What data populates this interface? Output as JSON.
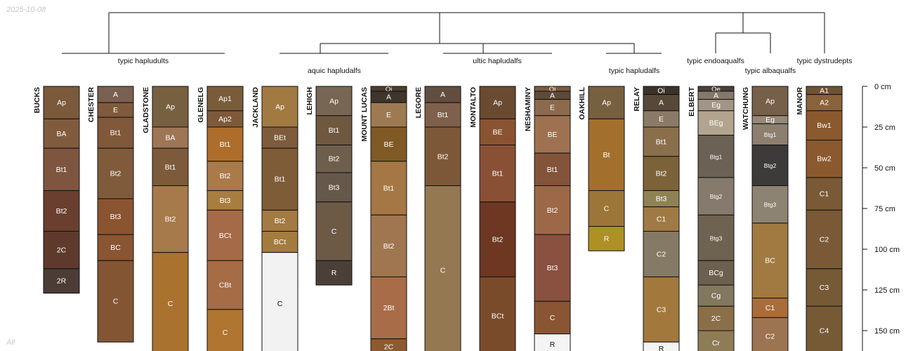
{
  "date_stamp": "2025-10-08",
  "footer_label": "All",
  "depth_axis": {
    "unit": "cm",
    "ticks": [
      {
        "value": 0,
        "label": "0 cm"
      },
      {
        "value": 25,
        "label": "25 cm"
      },
      {
        "value": 50,
        "label": "50 cm"
      },
      {
        "value": 75,
        "label": "75 cm"
      },
      {
        "value": 100,
        "label": "100 cm"
      },
      {
        "value": 125,
        "label": "125 cm"
      },
      {
        "value": 150,
        "label": "150 cm"
      }
    ]
  },
  "groups": [
    {
      "label": "typic hapludults",
      "profiles": [
        0,
        1,
        2,
        3
      ]
    },
    {
      "label": "aquic hapludalfs",
      "profiles": [
        4,
        5,
        6
      ]
    },
    {
      "label": "ultic hapludalfs",
      "profiles": [
        7,
        8,
        9
      ]
    },
    {
      "label": "typic hapludalfs",
      "profiles": [
        10,
        11
      ]
    },
    {
      "label": "typic endoaqualfs",
      "profiles": [
        12
      ]
    },
    {
      "label": "typic albaqualfs",
      "profiles": [
        13
      ]
    },
    {
      "label": "typic dystrudepts",
      "profiles": [
        14
      ]
    }
  ],
  "profiles": [
    {
      "name": "BUCKS",
      "horizons": [
        {
          "name": "Ap",
          "top": 0,
          "bottom": 20,
          "color": "#7a5a3a"
        },
        {
          "name": "BA",
          "top": 20,
          "bottom": 38,
          "color": "#815b3d"
        },
        {
          "name": "Bt1",
          "top": 38,
          "bottom": 64,
          "color": "#7e5640"
        },
        {
          "name": "Bt2",
          "top": 64,
          "bottom": 89,
          "color": "#6a3f2f"
        },
        {
          "name": "2C",
          "top": 89,
          "bottom": 112,
          "color": "#5e3a2d"
        },
        {
          "name": "2R",
          "top": 112,
          "bottom": 127,
          "color": "#4b3c36"
        }
      ]
    },
    {
      "name": "CHESTER",
      "horizons": [
        {
          "name": "A",
          "top": 0,
          "bottom": 10,
          "color": "#796050"
        },
        {
          "name": "E",
          "top": 10,
          "bottom": 19,
          "color": "#7f5a3c"
        },
        {
          "name": "Bt1",
          "top": 19,
          "bottom": 38,
          "color": "#80583a"
        },
        {
          "name": "Bt2",
          "top": 38,
          "bottom": 69,
          "color": "#7f5b3c"
        },
        {
          "name": "Bt3",
          "top": 69,
          "bottom": 91,
          "color": "#8a5430"
        },
        {
          "name": "BC",
          "top": 91,
          "bottom": 107,
          "color": "#8a5532"
        },
        {
          "name": "C",
          "top": 107,
          "bottom": 157,
          "color": "#845533"
        }
      ]
    },
    {
      "name": "GLADSTONE",
      "horizons": [
        {
          "name": "Ap",
          "top": 0,
          "bottom": 25,
          "color": "#76603f"
        },
        {
          "name": "BA",
          "top": 25,
          "bottom": 38,
          "color": "#9e7656"
        },
        {
          "name": "Bt1",
          "top": 38,
          "bottom": 61,
          "color": "#7d5a3a"
        },
        {
          "name": "Bt2",
          "top": 61,
          "bottom": 102,
          "color": "#a67a4b"
        },
        {
          "name": "C",
          "top": 102,
          "bottom": 165,
          "color": "#a9722e"
        }
      ]
    },
    {
      "name": "GLENELG",
      "horizons": [
        {
          "name": "Ap1",
          "top": 0,
          "bottom": 15,
          "color": "#7a5c3b"
        },
        {
          "name": "Ap2",
          "top": 15,
          "bottom": 25,
          "color": "#7f5a3a"
        },
        {
          "name": "Bt1",
          "top": 25,
          "bottom": 46,
          "color": "#ad6e2b"
        },
        {
          "name": "Bt2",
          "top": 46,
          "bottom": 64,
          "color": "#aa7a48"
        },
        {
          "name": "Bt3",
          "top": 64,
          "bottom": 76,
          "color": "#a87d40"
        },
        {
          "name": "BCt",
          "top": 76,
          "bottom": 107,
          "color": "#a56b48"
        },
        {
          "name": "CBt",
          "top": 107,
          "bottom": 137,
          "color": "#a56c45"
        },
        {
          "name": "C",
          "top": 137,
          "bottom": 165,
          "color": "#b07530"
        }
      ]
    },
    {
      "name": "JACKLAND",
      "horizons": [
        {
          "name": "Ap",
          "top": 0,
          "bottom": 25,
          "color": "#a17a42"
        },
        {
          "name": "BEt",
          "top": 25,
          "bottom": 38,
          "color": "#7e5b3b"
        },
        {
          "name": "Bt1",
          "top": 38,
          "bottom": 76,
          "color": "#7f5c38"
        },
        {
          "name": "Bt2",
          "top": 76,
          "bottom": 89,
          "color": "#a27a42"
        },
        {
          "name": "BCt",
          "top": 89,
          "bottom": 102,
          "color": "#a47b3f"
        },
        {
          "name": "C",
          "top": 102,
          "bottom": 165,
          "color": "#f2f2f2"
        }
      ]
    },
    {
      "name": "LEHIGH",
      "horizons": [
        {
          "name": "Ap",
          "top": 0,
          "bottom": 18,
          "color": "#776653"
        },
        {
          "name": "Bt1",
          "top": 18,
          "bottom": 36,
          "color": "#6f5840"
        },
        {
          "name": "Bt2",
          "top": 36,
          "bottom": 53,
          "color": "#6e5e4c"
        },
        {
          "name": "Bt3",
          "top": 53,
          "bottom": 71,
          "color": "#66584b"
        },
        {
          "name": "C",
          "top": 71,
          "bottom": 107,
          "color": "#6c5a47"
        },
        {
          "name": "R",
          "top": 107,
          "bottom": 122,
          "color": "#4b4037"
        }
      ]
    },
    {
      "name": "MOUNT LUCAS",
      "horizons": [
        {
          "name": "Oi",
          "top": 0,
          "bottom": 3,
          "color": "#4b3d2e"
        },
        {
          "name": "A",
          "top": 3,
          "bottom": 10,
          "color": "#3e352c"
        },
        {
          "name": "E",
          "top": 10,
          "bottom": 25,
          "color": "#9e7a52"
        },
        {
          "name": "BE",
          "top": 25,
          "bottom": 46,
          "color": "#7f5a25"
        },
        {
          "name": "Bt1",
          "top": 46,
          "bottom": 79,
          "color": "#a47744"
        },
        {
          "name": "Bt2",
          "top": 79,
          "bottom": 117,
          "color": "#a07651"
        },
        {
          "name": "2Bt",
          "top": 117,
          "bottom": 155,
          "color": "#a86d48"
        },
        {
          "name": "2C",
          "top": 155,
          "bottom": 165,
          "color": "#8b5a30"
        }
      ]
    },
    {
      "name": "LEGORE",
      "horizons": [
        {
          "name": "A",
          "top": 0,
          "bottom": 10,
          "color": "#614e3e"
        },
        {
          "name": "Bt1",
          "top": 10,
          "bottom": 25,
          "color": "#7e604b"
        },
        {
          "name": "Bt2",
          "top": 25,
          "bottom": 61,
          "color": "#7d5838"
        },
        {
          "name": "C",
          "top": 61,
          "bottom": 165,
          "color": "#947852"
        }
      ]
    },
    {
      "name": "MONTALTO",
      "horizons": [
        {
          "name": "Ap",
          "top": 0,
          "bottom": 20,
          "color": "#6b4a32"
        },
        {
          "name": "BE",
          "top": 20,
          "bottom": 36,
          "color": "#8a5331"
        },
        {
          "name": "Bt1",
          "top": 36,
          "bottom": 71,
          "color": "#8a5036"
        },
        {
          "name": "Bt2",
          "top": 71,
          "bottom": 117,
          "color": "#6d3722"
        },
        {
          "name": "BCt",
          "top": 117,
          "bottom": 165,
          "color": "#7a4b2b"
        }
      ]
    },
    {
      "name": "NESHAMINY",
      "horizons": [
        {
          "name": "Oi",
          "top": 0,
          "bottom": 3,
          "color": "#7b5a3e"
        },
        {
          "name": "A",
          "top": 3,
          "bottom": 8,
          "color": "#5e4a38"
        },
        {
          "name": "E",
          "top": 8,
          "bottom": 18,
          "color": "#8b6a4d"
        },
        {
          "name": "BE",
          "top": 18,
          "bottom": 41,
          "color": "#9e7250"
        },
        {
          "name": "Bt1",
          "top": 41,
          "bottom": 61,
          "color": "#83533a"
        },
        {
          "name": "Bt2",
          "top": 61,
          "bottom": 91,
          "color": "#9c6848"
        },
        {
          "name": "Bt3",
          "top": 91,
          "bottom": 132,
          "color": "#8a5040"
        },
        {
          "name": "C",
          "top": 132,
          "bottom": 152,
          "color": "#8a5532"
        },
        {
          "name": "R",
          "top": 152,
          "bottom": 165,
          "color": "#f4f4f4"
        }
      ]
    },
    {
      "name": "OAKHILL",
      "horizons": [
        {
          "name": "Ap",
          "top": 0,
          "bottom": 20,
          "color": "#77603f"
        },
        {
          "name": "Bt",
          "top": 20,
          "bottom": 64,
          "color": "#a2702c"
        },
        {
          "name": "C",
          "top": 64,
          "bottom": 86,
          "color": "#9c7638"
        },
        {
          "name": "R",
          "top": 86,
          "bottom": 101,
          "color": "#ad9125"
        }
      ]
    },
    {
      "name": "RELAY",
      "horizons": [
        {
          "name": "Oi",
          "top": 0,
          "bottom": 5,
          "color": "#3b3329"
        },
        {
          "name": "A",
          "top": 5,
          "bottom": 15,
          "color": "#584837"
        },
        {
          "name": "E",
          "top": 15,
          "bottom": 25,
          "color": "#8a7a66"
        },
        {
          "name": "Bt1",
          "top": 25,
          "bottom": 43,
          "color": "#8a6f4c"
        },
        {
          "name": "Bt2",
          "top": 43,
          "bottom": 64,
          "color": "#7b6239"
        },
        {
          "name": "Bt3",
          "top": 64,
          "bottom": 74,
          "color": "#8e8255"
        },
        {
          "name": "C1",
          "top": 74,
          "bottom": 89,
          "color": "#a07a44"
        },
        {
          "name": "C2",
          "top": 89,
          "bottom": 117,
          "color": "#857a66"
        },
        {
          "name": "C3",
          "top": 117,
          "bottom": 157,
          "color": "#a3783c"
        },
        {
          "name": "R",
          "top": 157,
          "bottom": 165,
          "color": "#f4f4f4"
        }
      ]
    },
    {
      "name": "ELBERT",
      "horizons": [
        {
          "name": "Oe",
          "top": 0,
          "bottom": 3,
          "color": "#4a4237"
        },
        {
          "name": "A",
          "top": 3,
          "bottom": 8,
          "color": "#86786b"
        },
        {
          "name": "Eg",
          "top": 8,
          "bottom": 15,
          "color": "#a39585"
        },
        {
          "name": "BEg",
          "top": 15,
          "bottom": 30,
          "color": "#b2a48f"
        },
        {
          "name": "Btg1",
          "top": 30,
          "bottom": 56,
          "color": "#6b6154"
        },
        {
          "name": "Btg2",
          "top": 56,
          "bottom": 79,
          "color": "#857a6c"
        },
        {
          "name": "Btg3",
          "top": 79,
          "bottom": 107,
          "color": "#6e6251"
        },
        {
          "name": "BCg",
          "top": 107,
          "bottom": 122,
          "color": "#6c604f"
        },
        {
          "name": "Cg",
          "top": 122,
          "bottom": 135,
          "color": "#82785f"
        },
        {
          "name": "2C",
          "top": 135,
          "bottom": 150,
          "color": "#8a6f49"
        },
        {
          "name": "Cr",
          "top": 150,
          "bottom": 165,
          "color": "#8e7c57"
        }
      ]
    },
    {
      "name": "WATCHUNG",
      "horizons": [
        {
          "name": "Ap",
          "top": 0,
          "bottom": 18,
          "color": "#76604a"
        },
        {
          "name": "Eg",
          "top": 18,
          "bottom": 23,
          "color": "#968979"
        },
        {
          "name": "Btg1",
          "top": 23,
          "bottom": 36,
          "color": "#8c7f70"
        },
        {
          "name": "Btg2",
          "top": 36,
          "bottom": 61,
          "color": "#3c3b39"
        },
        {
          "name": "Btg3",
          "top": 61,
          "bottom": 84,
          "color": "#8d8372"
        },
        {
          "name": "BC",
          "top": 84,
          "bottom": 130,
          "color": "#a17a42"
        },
        {
          "name": "C1",
          "top": 130,
          "bottom": 142,
          "color": "#a86d3c"
        },
        {
          "name": "C2",
          "top": 142,
          "bottom": 165,
          "color": "#9c7452"
        }
      ]
    },
    {
      "name": "MANOR",
      "horizons": [
        {
          "name": "A1",
          "top": 0,
          "bottom": 5,
          "color": "#6e5236"
        },
        {
          "name": "A2",
          "top": 5,
          "bottom": 15,
          "color": "#8a623c"
        },
        {
          "name": "Bw1",
          "top": 15,
          "bottom": 33,
          "color": "#8a5a2e"
        },
        {
          "name": "Bw2",
          "top": 33,
          "bottom": 56,
          "color": "#8a5a2e"
        },
        {
          "name": "C1",
          "top": 56,
          "bottom": 76,
          "color": "#7a5a36"
        },
        {
          "name": "C2",
          "top": 76,
          "bottom": 112,
          "color": "#7a5a36"
        },
        {
          "name": "C3",
          "top": 112,
          "bottom": 135,
          "color": "#765a36"
        },
        {
          "name": "C4",
          "top": 135,
          "bottom": 165,
          "color": "#765a36"
        }
      ]
    }
  ]
}
